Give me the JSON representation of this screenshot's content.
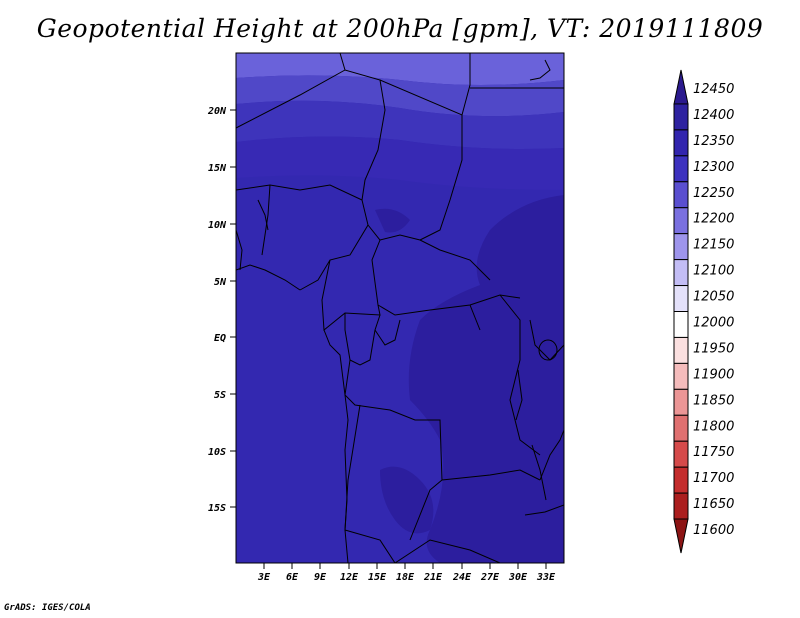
{
  "title": "Geopotential Height at 200hPa [gpm], VT: 2019111809",
  "credit": "GrADS: IGES/COLA",
  "lat_labels": [
    "20N",
    "15N",
    "10N",
    "5N",
    "EQ",
    "5S",
    "10S",
    "15S"
  ],
  "lon_labels": [
    "3E",
    "6E",
    "9E",
    "12E",
    "15E",
    "18E",
    "21E",
    "24E",
    "27E",
    "30E",
    "33E"
  ],
  "colorbar": {
    "levels": [
      12450,
      12400,
      12350,
      12300,
      12250,
      12200,
      12150,
      12100,
      12050,
      12000,
      11950,
      11900,
      11850,
      11800,
      11750,
      11700,
      11650,
      11600
    ],
    "colors": [
      "#2b1a8e",
      "#2e22a0",
      "#3225ae",
      "#3d32bf",
      "#5a4fd0",
      "#7a70e0",
      "#9e95ec",
      "#c3bdf5",
      "#e4e1fa",
      "#ffffff",
      "#fbe0e0",
      "#f5bcbc",
      "#ec9696",
      "#e07070",
      "#d54a4a",
      "#c42d2d",
      "#ab1e1e",
      "#8c1414"
    ]
  },
  "map": {
    "lat_range": [
      -19,
      24.5
    ],
    "lon_range": [
      0,
      34.5
    ],
    "description_colors": {
      "north_band": "#6a62da",
      "mid_north": "#4a40c6",
      "main": "#3328b0",
      "dark": "#2e20a4"
    }
  }
}
